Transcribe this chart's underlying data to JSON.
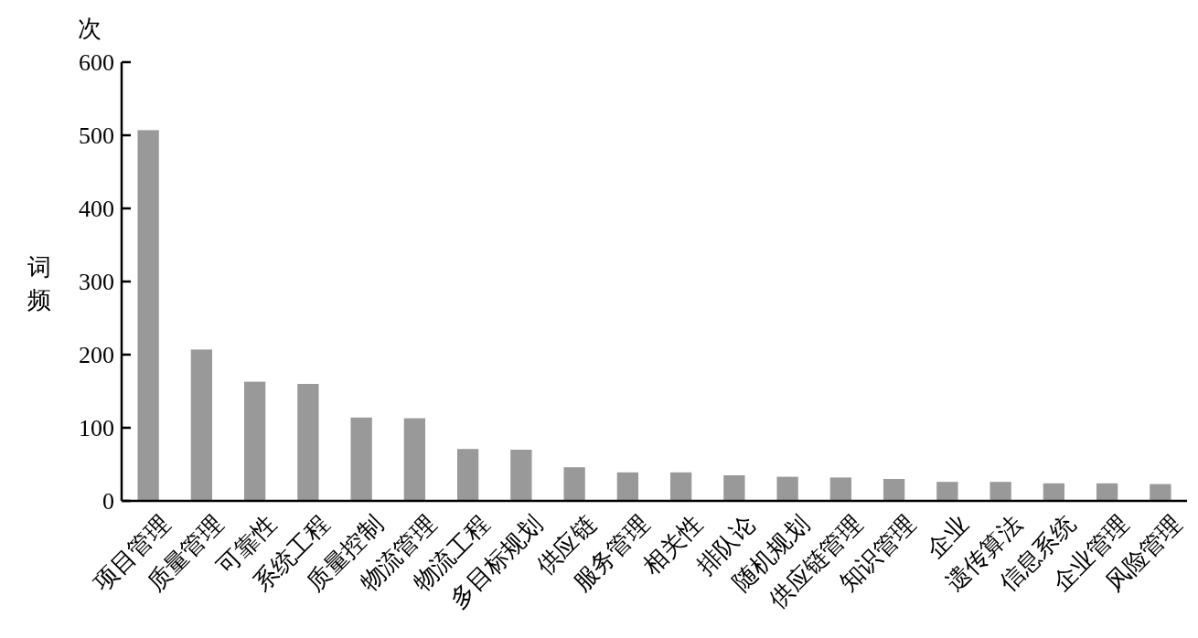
{
  "chart_data": {
    "type": "bar",
    "ylabel": "词频",
    "annotations": [
      "次"
    ],
    "categories": [
      "项目管理",
      "质量管理",
      "可靠性",
      "系统工程",
      "质量控制",
      "物流管理",
      "物流工程",
      "多目标规划",
      "供应链",
      "服务管理",
      "相关性",
      "排队论",
      "随机规划",
      "供应链管理",
      "知识管理",
      "企业",
      "遗传算法",
      "信息系统",
      "企业管理",
      "风险管理"
    ],
    "values": [
      507,
      207,
      163,
      160,
      114,
      113,
      71,
      70,
      46,
      39,
      39,
      35,
      33,
      32,
      30,
      26,
      26,
      24,
      24,
      23
    ],
    "color": "#999999",
    "ylim": [
      0,
      600
    ],
    "yticks": [
      0,
      100,
      200,
      300,
      400,
      500,
      600
    ],
    "grid": false
  }
}
